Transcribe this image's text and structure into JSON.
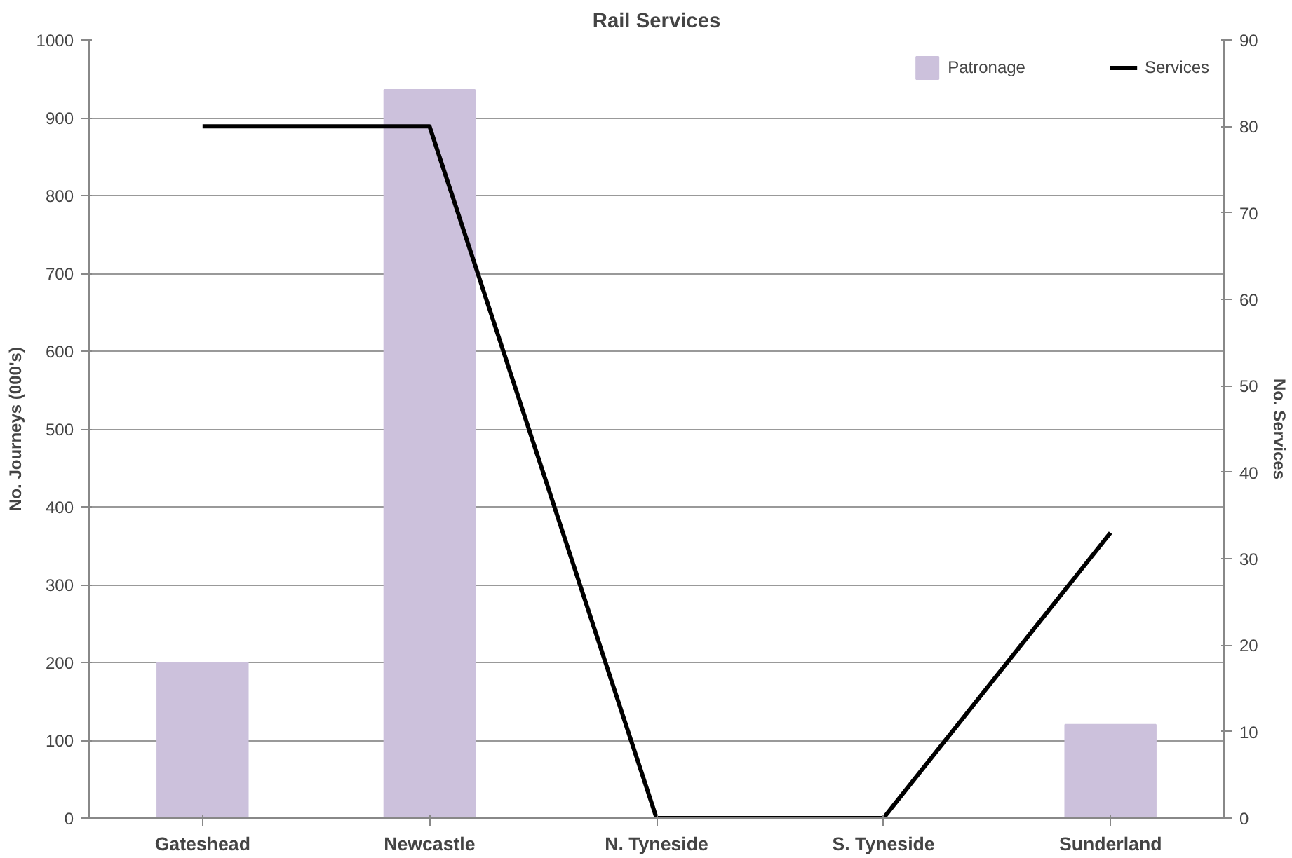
{
  "chart_data": {
    "type": "bar",
    "title": "Rail Services",
    "ylabel": "No. Journeys (000's)",
    "y2label": "No. Services",
    "categories": [
      "Gateshead",
      "Newcastle",
      "N. Tyneside",
      "S. Tyneside",
      "Sunderland"
    ],
    "series": [
      {
        "name": "Patronage",
        "color": "#ccc1dc",
        "values": [
          200,
          936,
          null,
          null,
          120
        ]
      },
      {
        "name": "Services",
        "type": "line",
        "axis": "y2",
        "color": "#000000",
        "values": [
          80,
          80,
          0,
          0,
          33
        ]
      }
    ],
    "ylim": [
      0,
      1000
    ],
    "yticks": [
      0,
      100,
      200,
      300,
      400,
      500,
      600,
      700,
      800,
      900,
      1000
    ],
    "y2lim": [
      0,
      90
    ],
    "y2ticks": [
      0,
      10,
      20,
      30,
      40,
      50,
      60,
      70,
      80,
      90
    ],
    "grid": "y",
    "legend": "top right"
  }
}
